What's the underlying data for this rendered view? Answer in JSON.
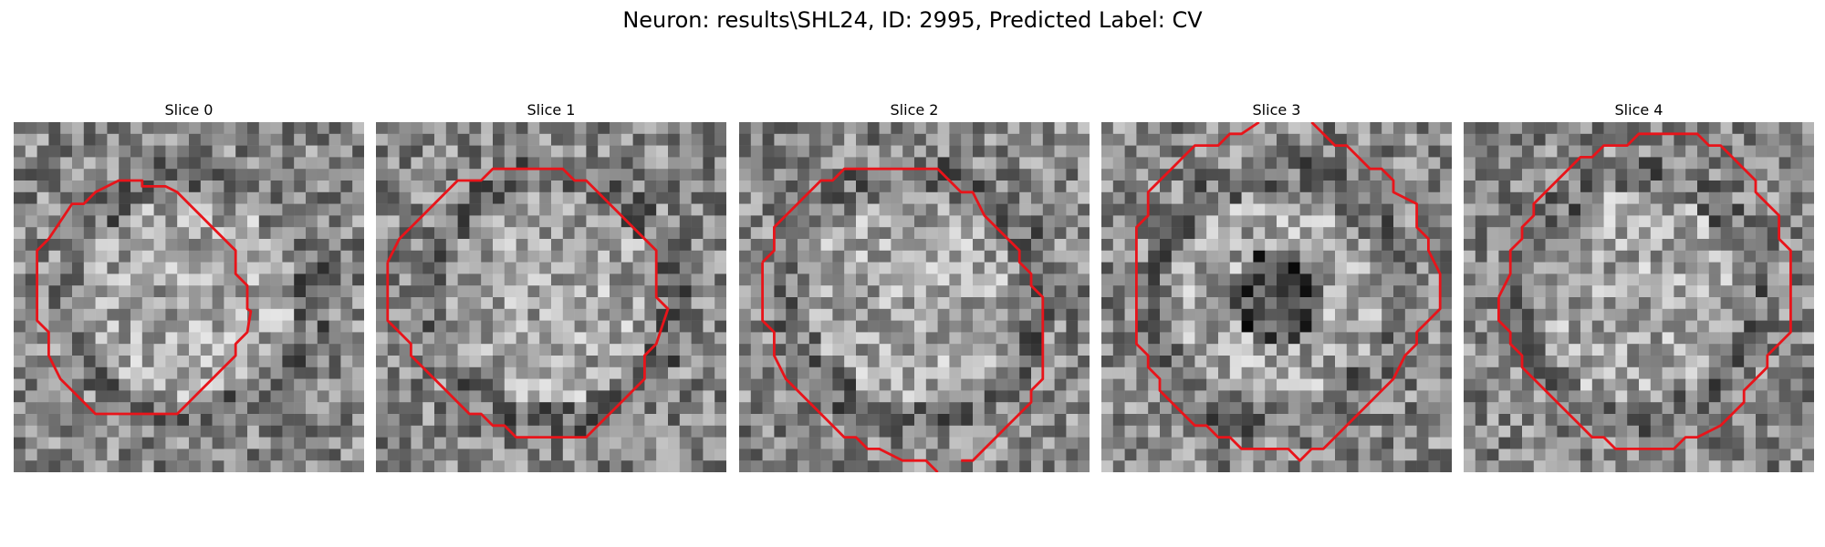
{
  "figure": {
    "title": "Neuron: results\\SHL24, ID: 2995, Predicted Label: CV"
  },
  "panels": [
    {
      "title": "Slice 0",
      "seed": 11
    },
    {
      "title": "Slice 1",
      "seed": 23
    },
    {
      "title": "Slice 2",
      "seed": 37
    },
    {
      "title": "Slice 3",
      "seed": 41
    },
    {
      "title": "Slice 4",
      "seed": 53
    }
  ],
  "colors": {
    "contour": "#e8141a"
  }
}
